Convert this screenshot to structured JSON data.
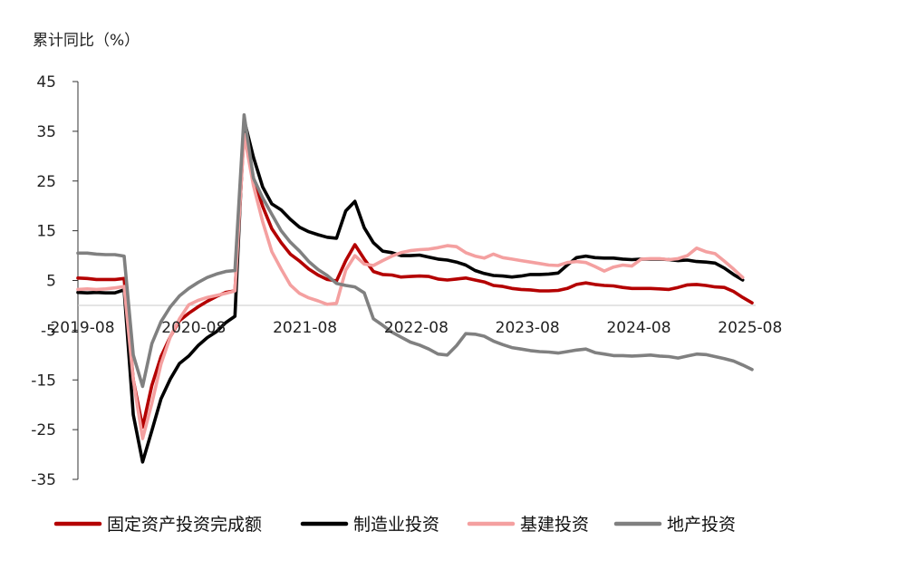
{
  "chart_data": {
    "type": "line",
    "ylabel": "累计同比（%）",
    "ylim": [
      -35,
      45
    ],
    "yticks": [
      45,
      35,
      25,
      15,
      5,
      -5,
      -15,
      -25,
      -35
    ],
    "x_tick_labels": [
      "2019-08",
      "2020-08",
      "2021-08",
      "2022-08",
      "2023-08",
      "2024-08",
      "2025-08"
    ],
    "x_range": [
      2019.583,
      2025.667
    ],
    "grid": false,
    "zero_line": true,
    "legend_position": "bottom",
    "series": [
      {
        "name": "固定资产投资完成额",
        "color": "#B40000",
        "points": [
          [
            2019.583,
            5.5
          ],
          [
            2019.667,
            5.4
          ],
          [
            2019.75,
            5.2
          ],
          [
            2019.833,
            5.2
          ],
          [
            2019.917,
            5.2
          ],
          [
            2020.0,
            5.4
          ],
          [
            2020.083,
            -15
          ],
          [
            2020.167,
            -24.5
          ],
          [
            2020.25,
            -16.1
          ],
          [
            2020.333,
            -10.3
          ],
          [
            2020.417,
            -6.3
          ],
          [
            2020.5,
            -3.1
          ],
          [
            2020.583,
            -1.6
          ],
          [
            2020.667,
            -0.3
          ],
          [
            2020.75,
            0.8
          ],
          [
            2020.833,
            1.8
          ],
          [
            2020.917,
            2.6
          ],
          [
            2021.0,
            2.9
          ],
          [
            2021.083,
            35
          ],
          [
            2021.167,
            25.6
          ],
          [
            2021.25,
            19.9
          ],
          [
            2021.333,
            15.4
          ],
          [
            2021.417,
            12.6
          ],
          [
            2021.5,
            10.3
          ],
          [
            2021.583,
            8.9
          ],
          [
            2021.667,
            7.3
          ],
          [
            2021.75,
            6.1
          ],
          [
            2021.833,
            5.2
          ],
          [
            2021.917,
            4.9
          ],
          [
            2022.0,
            9
          ],
          [
            2022.083,
            12.2
          ],
          [
            2022.167,
            9.3
          ],
          [
            2022.25,
            6.8
          ],
          [
            2022.333,
            6.2
          ],
          [
            2022.417,
            6.1
          ],
          [
            2022.5,
            5.7
          ],
          [
            2022.583,
            5.8
          ],
          [
            2022.667,
            5.9
          ],
          [
            2022.75,
            5.8
          ],
          [
            2022.833,
            5.3
          ],
          [
            2022.917,
            5.1
          ],
          [
            2023.0,
            5.3
          ],
          [
            2023.083,
            5.5
          ],
          [
            2023.167,
            5.1
          ],
          [
            2023.25,
            4.7
          ],
          [
            2023.333,
            4.0
          ],
          [
            2023.417,
            3.8
          ],
          [
            2023.5,
            3.4
          ],
          [
            2023.583,
            3.2
          ],
          [
            2023.667,
            3.1
          ],
          [
            2023.75,
            2.9
          ],
          [
            2023.833,
            2.9
          ],
          [
            2023.917,
            3.0
          ],
          [
            2024.0,
            3.4
          ],
          [
            2024.083,
            4.2
          ],
          [
            2024.167,
            4.5
          ],
          [
            2024.25,
            4.2
          ],
          [
            2024.333,
            4.0
          ],
          [
            2024.417,
            3.9
          ],
          [
            2024.5,
            3.6
          ],
          [
            2024.583,
            3.4
          ],
          [
            2024.667,
            3.4
          ],
          [
            2024.75,
            3.4
          ],
          [
            2024.833,
            3.3
          ],
          [
            2024.917,
            3.2
          ],
          [
            2025.0,
            3.6
          ],
          [
            2025.083,
            4.1
          ],
          [
            2025.167,
            4.2
          ],
          [
            2025.25,
            4.0
          ],
          [
            2025.333,
            3.7
          ],
          [
            2025.417,
            3.6
          ],
          [
            2025.5,
            2.8
          ],
          [
            2025.583,
            1.6
          ],
          [
            2025.667,
            0.5
          ]
        ]
      },
      {
        "name": "制造业投资",
        "color": "#000000",
        "points": [
          [
            2019.583,
            2.6
          ],
          [
            2019.667,
            2.5
          ],
          [
            2019.75,
            2.6
          ],
          [
            2019.833,
            2.5
          ],
          [
            2019.917,
            2.5
          ],
          [
            2020.0,
            3.1
          ],
          [
            2020.083,
            -22
          ],
          [
            2020.167,
            -31.5
          ],
          [
            2020.25,
            -25.2
          ],
          [
            2020.333,
            -18.8
          ],
          [
            2020.417,
            -14.8
          ],
          [
            2020.5,
            -11.7
          ],
          [
            2020.583,
            -10.2
          ],
          [
            2020.667,
            -8.1
          ],
          [
            2020.75,
            -6.5
          ],
          [
            2020.833,
            -5.3
          ],
          [
            2020.917,
            -3.5
          ],
          [
            2021.0,
            -2.2
          ],
          [
            2021.083,
            37.3
          ],
          [
            2021.167,
            29.8
          ],
          [
            2021.25,
            23.8
          ],
          [
            2021.333,
            20.4
          ],
          [
            2021.417,
            19.2
          ],
          [
            2021.5,
            17.3
          ],
          [
            2021.583,
            15.7
          ],
          [
            2021.667,
            14.8
          ],
          [
            2021.75,
            14.2
          ],
          [
            2021.833,
            13.7
          ],
          [
            2021.917,
            13.5
          ],
          [
            2022.0,
            19
          ],
          [
            2022.083,
            20.9
          ],
          [
            2022.167,
            15.6
          ],
          [
            2022.25,
            12.6
          ],
          [
            2022.333,
            10.9
          ],
          [
            2022.417,
            10.6
          ],
          [
            2022.5,
            10.0
          ],
          [
            2022.583,
            10.0
          ],
          [
            2022.667,
            10.1
          ],
          [
            2022.75,
            9.7
          ],
          [
            2022.833,
            9.3
          ],
          [
            2022.917,
            9.1
          ],
          [
            2023.0,
            8.7
          ],
          [
            2023.083,
            8.1
          ],
          [
            2023.167,
            7.0
          ],
          [
            2023.25,
            6.4
          ],
          [
            2023.333,
            6.0
          ],
          [
            2023.417,
            5.9
          ],
          [
            2023.5,
            5.7
          ],
          [
            2023.583,
            5.9
          ],
          [
            2023.667,
            6.2
          ],
          [
            2023.75,
            6.2
          ],
          [
            2023.833,
            6.3
          ],
          [
            2023.917,
            6.5
          ],
          [
            2024.0,
            8.1
          ],
          [
            2024.083,
            9.6
          ],
          [
            2024.167,
            9.9
          ],
          [
            2024.25,
            9.6
          ],
          [
            2024.333,
            9.5
          ],
          [
            2024.417,
            9.5
          ],
          [
            2024.5,
            9.3
          ],
          [
            2024.583,
            9.2
          ],
          [
            2024.667,
            9.3
          ],
          [
            2024.75,
            9.3
          ],
          [
            2024.833,
            9.3
          ],
          [
            2024.917,
            9.2
          ],
          [
            2025.0,
            9.0
          ],
          [
            2025.083,
            9.1
          ],
          [
            2025.167,
            8.8
          ],
          [
            2025.25,
            8.7
          ],
          [
            2025.333,
            8.5
          ],
          [
            2025.417,
            7.5
          ],
          [
            2025.5,
            6.2
          ],
          [
            2025.583,
            5.1
          ]
        ]
      },
      {
        "name": "基建投资",
        "color": "#F4A0A0",
        "points": [
          [
            2019.583,
            3.2
          ],
          [
            2019.667,
            3.3
          ],
          [
            2019.75,
            3.2
          ],
          [
            2019.833,
            3.3
          ],
          [
            2019.917,
            3.5
          ],
          [
            2020.0,
            3.8
          ],
          [
            2020.083,
            -15
          ],
          [
            2020.167,
            -26.8
          ],
          [
            2020.25,
            -19.7
          ],
          [
            2020.333,
            -11.8
          ],
          [
            2020.417,
            -6.3
          ],
          [
            2020.5,
            -2.7
          ],
          [
            2020.583,
            0.1
          ],
          [
            2020.667,
            1.0
          ],
          [
            2020.75,
            1.6
          ],
          [
            2020.833,
            2.0
          ],
          [
            2020.917,
            2.4
          ],
          [
            2021.0,
            2.9
          ],
          [
            2021.083,
            34.4
          ],
          [
            2021.167,
            24.1
          ],
          [
            2021.25,
            16.8
          ],
          [
            2021.333,
            10.8
          ],
          [
            2021.417,
            7.3
          ],
          [
            2021.5,
            4.1
          ],
          [
            2021.583,
            2.4
          ],
          [
            2021.667,
            1.5
          ],
          [
            2021.75,
            0.9
          ],
          [
            2021.833,
            0.2
          ],
          [
            2021.917,
            0.4
          ],
          [
            2022.0,
            7.1
          ],
          [
            2022.083,
            10.0
          ],
          [
            2022.167,
            8.3
          ],
          [
            2022.25,
            8.0
          ],
          [
            2022.333,
            9.0
          ],
          [
            2022.417,
            9.9
          ],
          [
            2022.5,
            10.6
          ],
          [
            2022.583,
            11.0
          ],
          [
            2022.667,
            11.2
          ],
          [
            2022.75,
            11.3
          ],
          [
            2022.833,
            11.6
          ],
          [
            2022.917,
            12.0
          ],
          [
            2023.0,
            11.8
          ],
          [
            2023.083,
            10.6
          ],
          [
            2023.167,
            9.9
          ],
          [
            2023.25,
            9.5
          ],
          [
            2023.333,
            10.3
          ],
          [
            2023.417,
            9.6
          ],
          [
            2023.5,
            9.3
          ],
          [
            2023.583,
            9.0
          ],
          [
            2023.667,
            8.7
          ],
          [
            2023.75,
            8.4
          ],
          [
            2023.833,
            8.1
          ],
          [
            2023.917,
            8.0
          ],
          [
            2024.0,
            8.6
          ],
          [
            2024.083,
            8.8
          ],
          [
            2024.167,
            8.6
          ],
          [
            2024.25,
            7.8
          ],
          [
            2024.333,
            6.9
          ],
          [
            2024.417,
            7.7
          ],
          [
            2024.5,
            8.1
          ],
          [
            2024.583,
            7.9
          ],
          [
            2024.667,
            9.3
          ],
          [
            2024.75,
            9.4
          ],
          [
            2024.833,
            9.4
          ],
          [
            2024.917,
            9.2
          ],
          [
            2025.0,
            9.4
          ],
          [
            2025.083,
            10.0
          ],
          [
            2025.167,
            11.5
          ],
          [
            2025.25,
            10.8
          ],
          [
            2025.333,
            10.4
          ],
          [
            2025.417,
            8.9
          ],
          [
            2025.5,
            7.3
          ],
          [
            2025.583,
            5.6
          ]
        ]
      },
      {
        "name": "地产投资",
        "color": "#808080",
        "points": [
          [
            2019.583,
            10.5
          ],
          [
            2019.667,
            10.5
          ],
          [
            2019.75,
            10.3
          ],
          [
            2019.833,
            10.2
          ],
          [
            2019.917,
            10.2
          ],
          [
            2020.0,
            9.9
          ],
          [
            2020.083,
            -10
          ],
          [
            2020.167,
            -16.3
          ],
          [
            2020.25,
            -7.7
          ],
          [
            2020.333,
            -3.3
          ],
          [
            2020.417,
            -0.3
          ],
          [
            2020.5,
            1.9
          ],
          [
            2020.583,
            3.4
          ],
          [
            2020.667,
            4.6
          ],
          [
            2020.75,
            5.6
          ],
          [
            2020.833,
            6.3
          ],
          [
            2020.917,
            6.8
          ],
          [
            2021.0,
            7.0
          ],
          [
            2021.083,
            38.3
          ],
          [
            2021.167,
            25.6
          ],
          [
            2021.25,
            21.6
          ],
          [
            2021.333,
            18.3
          ],
          [
            2021.417,
            15.0
          ],
          [
            2021.5,
            12.7
          ],
          [
            2021.583,
            10.9
          ],
          [
            2021.667,
            8.8
          ],
          [
            2021.75,
            7.2
          ],
          [
            2021.833,
            6.0
          ],
          [
            2021.917,
            4.4
          ],
          [
            2022.0,
            4.0
          ],
          [
            2022.083,
            3.7
          ],
          [
            2022.167,
            2.5
          ],
          [
            2022.25,
            -2.7
          ],
          [
            2022.333,
            -4.0
          ],
          [
            2022.417,
            -5.4
          ],
          [
            2022.5,
            -6.4
          ],
          [
            2022.583,
            -7.4
          ],
          [
            2022.667,
            -8.0
          ],
          [
            2022.75,
            -8.8
          ],
          [
            2022.833,
            -9.8
          ],
          [
            2022.917,
            -10.0
          ],
          [
            2023.0,
            -8.1
          ],
          [
            2023.083,
            -5.7
          ],
          [
            2023.167,
            -5.8
          ],
          [
            2023.25,
            -6.2
          ],
          [
            2023.333,
            -7.2
          ],
          [
            2023.417,
            -7.9
          ],
          [
            2023.5,
            -8.5
          ],
          [
            2023.583,
            -8.8
          ],
          [
            2023.667,
            -9.1
          ],
          [
            2023.75,
            -9.3
          ],
          [
            2023.833,
            -9.4
          ],
          [
            2023.917,
            -9.6
          ],
          [
            2024.0,
            -9.3
          ],
          [
            2024.083,
            -9.0
          ],
          [
            2024.167,
            -8.8
          ],
          [
            2024.25,
            -9.5
          ],
          [
            2024.333,
            -9.8
          ],
          [
            2024.417,
            -10.1
          ],
          [
            2024.5,
            -10.1
          ],
          [
            2024.583,
            -10.2
          ],
          [
            2024.667,
            -10.1
          ],
          [
            2024.75,
            -10.0
          ],
          [
            2024.833,
            -10.2
          ],
          [
            2024.917,
            -10.3
          ],
          [
            2025.0,
            -10.6
          ],
          [
            2025.083,
            -10.2
          ],
          [
            2025.167,
            -9.8
          ],
          [
            2025.25,
            -9.9
          ],
          [
            2025.333,
            -10.3
          ],
          [
            2025.417,
            -10.7
          ],
          [
            2025.5,
            -11.2
          ],
          [
            2025.583,
            -12.0
          ],
          [
            2025.667,
            -12.9
          ]
        ]
      }
    ]
  }
}
